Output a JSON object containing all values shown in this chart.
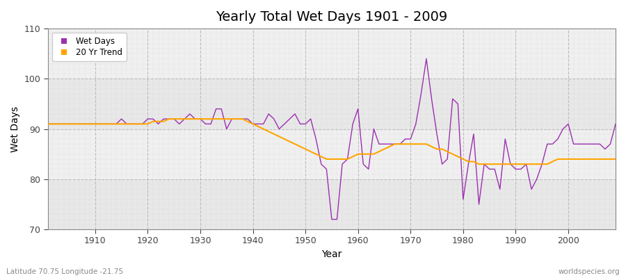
{
  "title": "Yearly Total Wet Days 1901 - 2009",
  "xlabel": "Year",
  "ylabel": "Wet Days",
  "xlim": [
    1901,
    2009
  ],
  "ylim": [
    70,
    110
  ],
  "yticks": [
    70,
    80,
    90,
    100,
    110
  ],
  "xticks": [
    1910,
    1920,
    1930,
    1940,
    1950,
    1960,
    1970,
    1980,
    1990,
    2000
  ],
  "wet_days_color": "#9B30B0",
  "trend_color": "#FFA500",
  "background_color": "#FFFFFF",
  "plot_bg_color": "#F0F0F0",
  "plot_band_color": "#E8E8E8",
  "grid_color": "#CCCCCC",
  "legend_labels": [
    "Wet Days",
    "20 Yr Trend"
  ],
  "subtitle_left": "Latitude 70.75 Longitude -21.75",
  "subtitle_right": "worldspecies.org",
  "wet_days": {
    "1901": 91,
    "1902": 91,
    "1903": 91,
    "1904": 91,
    "1905": 91,
    "1906": 91,
    "1907": 91,
    "1908": 91,
    "1909": 91,
    "1910": 91,
    "1911": 91,
    "1912": 91,
    "1913": 91,
    "1914": 91,
    "1915": 92,
    "1916": 91,
    "1917": 91,
    "1918": 91,
    "1919": 91,
    "1920": 92,
    "1921": 92,
    "1922": 91,
    "1923": 92,
    "1924": 92,
    "1925": 92,
    "1926": 91,
    "1927": 92,
    "1928": 93,
    "1929": 92,
    "1930": 92,
    "1931": 91,
    "1932": 91,
    "1933": 94,
    "1934": 94,
    "1935": 90,
    "1936": 92,
    "1937": 92,
    "1938": 92,
    "1939": 92,
    "1940": 91,
    "1941": 91,
    "1942": 91,
    "1943": 93,
    "1944": 92,
    "1945": 90,
    "1946": 91,
    "1947": 92,
    "1948": 93,
    "1949": 91,
    "1950": 91,
    "1951": 92,
    "1952": 88,
    "1953": 83,
    "1954": 82,
    "1955": 72,
    "1956": 72,
    "1957": 83,
    "1958": 84,
    "1959": 91,
    "1960": 94,
    "1961": 83,
    "1962": 82,
    "1963": 90,
    "1964": 87,
    "1965": 87,
    "1966": 87,
    "1967": 87,
    "1968": 87,
    "1969": 88,
    "1970": 88,
    "1971": 91,
    "1972": 97,
    "1973": 104,
    "1974": 96,
    "1975": 89,
    "1976": 83,
    "1977": 84,
    "1978": 96,
    "1979": 95,
    "1980": 76,
    "1981": 83,
    "1982": 89,
    "1983": 75,
    "1984": 83,
    "1985": 82,
    "1986": 82,
    "1987": 78,
    "1988": 88,
    "1989": 83,
    "1990": 82,
    "1991": 82,
    "1992": 83,
    "1993": 78,
    "1994": 80,
    "1995": 83,
    "1996": 87,
    "1997": 87,
    "1998": 88,
    "1999": 90,
    "2000": 91,
    "2001": 87,
    "2002": 87,
    "2003": 87,
    "2004": 87,
    "2005": 87,
    "2006": 87,
    "2007": 86,
    "2008": 87,
    "2009": 91
  },
  "trend_20yr": {
    "1901": 91.0,
    "1902": 91.0,
    "1903": 91.0,
    "1904": 91.0,
    "1905": 91.0,
    "1906": 91.0,
    "1907": 91.0,
    "1908": 91.0,
    "1909": 91.0,
    "1910": 91.0,
    "1911": 91.0,
    "1912": 91.0,
    "1913": 91.0,
    "1914": 91.0,
    "1915": 91.0,
    "1916": 91.0,
    "1917": 91.0,
    "1918": 91.0,
    "1919": 91.0,
    "1920": 91.0,
    "1921": 91.5,
    "1922": 91.5,
    "1923": 91.5,
    "1924": 92.0,
    "1925": 92.0,
    "1926": 92.0,
    "1927": 92.0,
    "1928": 92.0,
    "1929": 92.0,
    "1930": 92.0,
    "1931": 92.0,
    "1932": 92.0,
    "1933": 92.0,
    "1934": 92.0,
    "1935": 92.0,
    "1936": 92.0,
    "1937": 92.0,
    "1938": 92.0,
    "1939": 91.5,
    "1940": 91.0,
    "1941": 90.5,
    "1942": 90.0,
    "1943": 89.5,
    "1944": 89.0,
    "1945": 88.5,
    "1946": 88.0,
    "1947": 87.5,
    "1948": 87.0,
    "1949": 86.5,
    "1950": 86.0,
    "1951": 85.5,
    "1952": 85.0,
    "1953": 84.5,
    "1954": 84.0,
    "1955": 84.0,
    "1956": 84.0,
    "1957": 84.0,
    "1958": 84.0,
    "1959": 84.5,
    "1960": 85.0,
    "1961": 85.0,
    "1962": 85.0,
    "1963": 85.0,
    "1964": 85.5,
    "1965": 86.0,
    "1966": 86.5,
    "1967": 87.0,
    "1968": 87.0,
    "1969": 87.0,
    "1970": 87.0,
    "1971": 87.0,
    "1972": 87.0,
    "1973": 87.0,
    "1974": 86.5,
    "1975": 86.0,
    "1976": 86.0,
    "1977": 85.5,
    "1978": 85.0,
    "1979": 84.5,
    "1980": 84.0,
    "1981": 83.5,
    "1982": 83.5,
    "1983": 83.0,
    "1984": 83.0,
    "1985": 83.0,
    "1986": 83.0,
    "1987": 83.0,
    "1988": 83.0,
    "1989": 83.0,
    "1990": 83.0,
    "1991": 83.0,
    "1992": 83.0,
    "1993": 83.0,
    "1994": 83.0,
    "1995": 83.0,
    "1996": 83.0,
    "1997": 83.5,
    "1998": 84.0,
    "1999": 84.0,
    "2000": 84.0,
    "2001": 84.0,
    "2002": 84.0,
    "2003": 84.0,
    "2004": 84.0,
    "2005": 84.0,
    "2006": 84.0,
    "2007": 84.0,
    "2008": 84.0,
    "2009": 84.0
  }
}
